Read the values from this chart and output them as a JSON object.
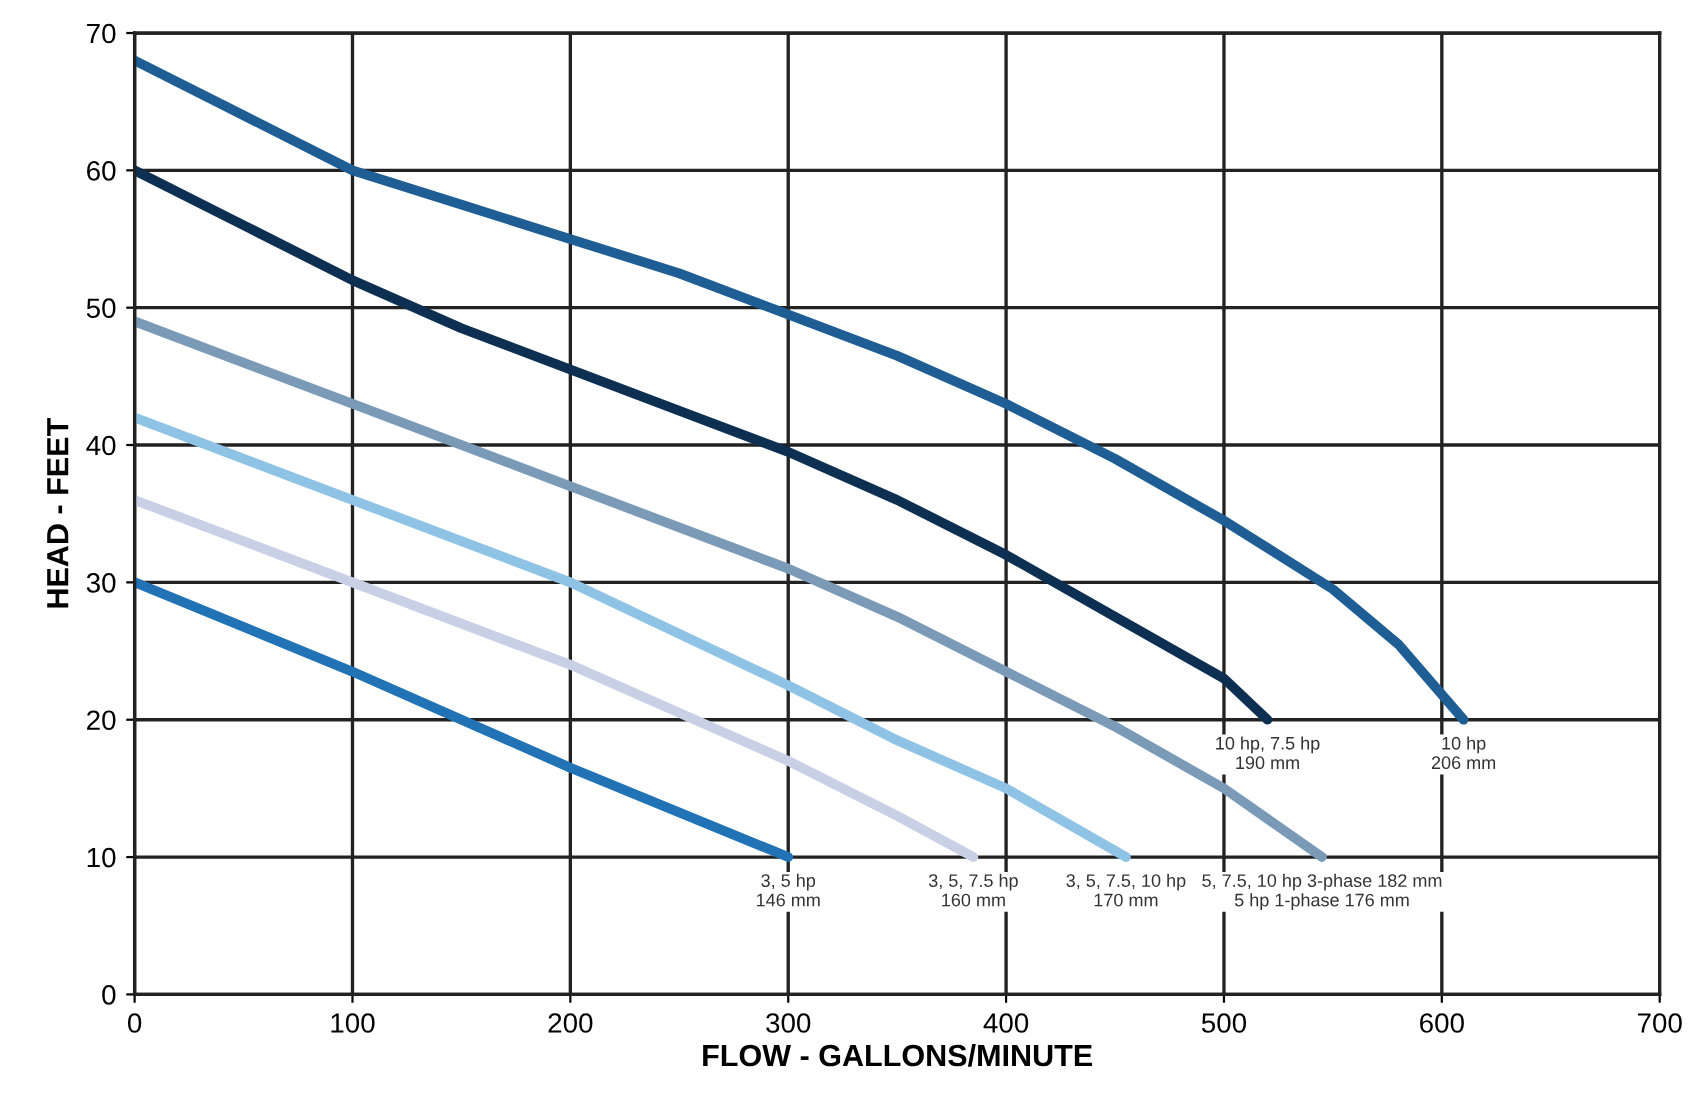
{
  "chart_data": {
    "type": "line",
    "xlabel": "FLOW - GALLONS/MINUTE",
    "ylabel": "HEAD - FEET",
    "xlim": [
      0,
      700
    ],
    "ylim": [
      0,
      70
    ],
    "xticks": [
      0,
      100,
      200,
      300,
      400,
      500,
      600,
      700
    ],
    "yticks": [
      0,
      10,
      20,
      30,
      40,
      50,
      60,
      70
    ],
    "grid": true,
    "legend": false,
    "marker": "none",
    "line_style": "solid",
    "series": [
      {
        "name": "10 hp\n206 mm",
        "color": "#1f5e94",
        "x": [
          0,
          50,
          100,
          150,
          200,
          250,
          300,
          350,
          400,
          450,
          500,
          550,
          580,
          610
        ],
        "values": [
          68,
          64,
          60,
          57.5,
          55,
          52.5,
          49.5,
          46.5,
          43,
          39,
          34.5,
          29.5,
          25.5,
          20
        ]
      },
      {
        "name": "10 hp, 7.5 hp\n190 mm",
        "color": "#0d2f52",
        "x": [
          0,
          50,
          100,
          150,
          200,
          250,
          300,
          350,
          400,
          450,
          500,
          520
        ],
        "values": [
          60,
          56,
          52,
          48.5,
          45.5,
          42.5,
          39.5,
          36,
          32,
          27.5,
          23,
          20
        ]
      },
      {
        "name": "5, 7.5, 10 hp 3-phase 182 mm\n5 hp 1-phase 176 mm",
        "color": "#7a9ab8",
        "x": [
          0,
          100,
          200,
          300,
          350,
          400,
          450,
          500,
          545
        ],
        "values": [
          49,
          43,
          37,
          31,
          27.5,
          23.5,
          19.5,
          15,
          10
        ]
      },
      {
        "name": "3, 5, 7.5, 10 hp\n170 mm",
        "color": "#8ec3e6",
        "x": [
          0,
          100,
          200,
          300,
          350,
          400,
          455
        ],
        "values": [
          42,
          36,
          30,
          22.5,
          18.5,
          15,
          10
        ]
      },
      {
        "name": "3, 5, 7.5 hp\n160 mm",
        "color": "#c8d0e6",
        "x": [
          0,
          100,
          200,
          300,
          350,
          385
        ],
        "values": [
          36,
          30,
          24,
          17,
          13,
          10
        ]
      },
      {
        "name": "3, 5 hp\n146 mm",
        "color": "#2273b5",
        "x": [
          0,
          100,
          200,
          300
        ],
        "values": [
          30,
          23.5,
          16.5,
          10
        ]
      }
    ]
  }
}
